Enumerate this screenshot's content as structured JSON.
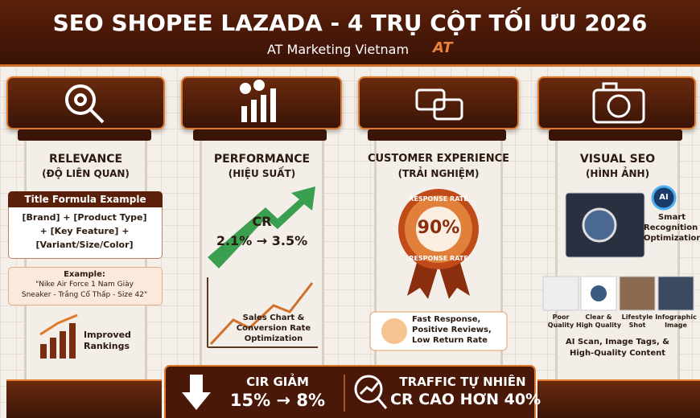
{
  "header": {
    "title": "SEO SHOPEE LAZADA - 4 TRỤ CỘT TỐI ƯU 2026",
    "subtitle": "AT Marketing Vietnam",
    "logo": "AT"
  },
  "pillars": [
    {
      "title": "RELEVANCE",
      "subtitle": "(ĐỘ LIÊN QUAN)",
      "box_title": "Title Formula Example",
      "formula": [
        "[Brand] + [Product Type]",
        "+ [Key Feature] +",
        "[Variant/Size/Color]"
      ],
      "example_label": "Example:",
      "example": [
        "\"Nike Air Force 1 Nam Giày",
        "Sneaker - Trắng Cổ Thấp - Size 42\""
      ],
      "result": [
        "Improved",
        "Rankings"
      ]
    },
    {
      "title": "PERFORMANCE",
      "subtitle": "(HIỆU SUẤT)",
      "metric_label": "CR",
      "metric": "2.1% → 3.5%",
      "chart_caption": [
        "Sales Chart &",
        "Conversion Rate",
        "Optimization"
      ]
    },
    {
      "title": "CUSTOMER EXPERIENCE",
      "subtitle": "(TRẢI NGHIỆM)",
      "badge_top": "RESPONSE RATE",
      "badge_value": "90%",
      "badge_bottom": "RESPONSE RATE",
      "note": [
        "Fast Response,",
        "Positive Reviews,",
        "Low Return Rate"
      ]
    },
    {
      "title": "VISUAL SEO",
      "subtitle": "(HÌNH ẢNH)",
      "ai": "AI",
      "ai_caption": [
        "Smart",
        "Recognition &",
        "Optimization"
      ],
      "thumbnails": [
        [
          "Poor",
          "Quality"
        ],
        [
          "Clear &",
          "High Quality"
        ],
        [
          "Lifestyle",
          "Shot"
        ],
        [
          "Infographic",
          "Image"
        ]
      ],
      "summary": [
        "AI Scan, Image Tags, &",
        "High-Quality Content"
      ]
    }
  ],
  "footer": {
    "left_title": "CIR GIẢM",
    "left_value": "15% → 8%",
    "right_title": "TRAFFIC TỰ NHIÊN",
    "right_value": "CR CAO HƠN 40%"
  }
}
